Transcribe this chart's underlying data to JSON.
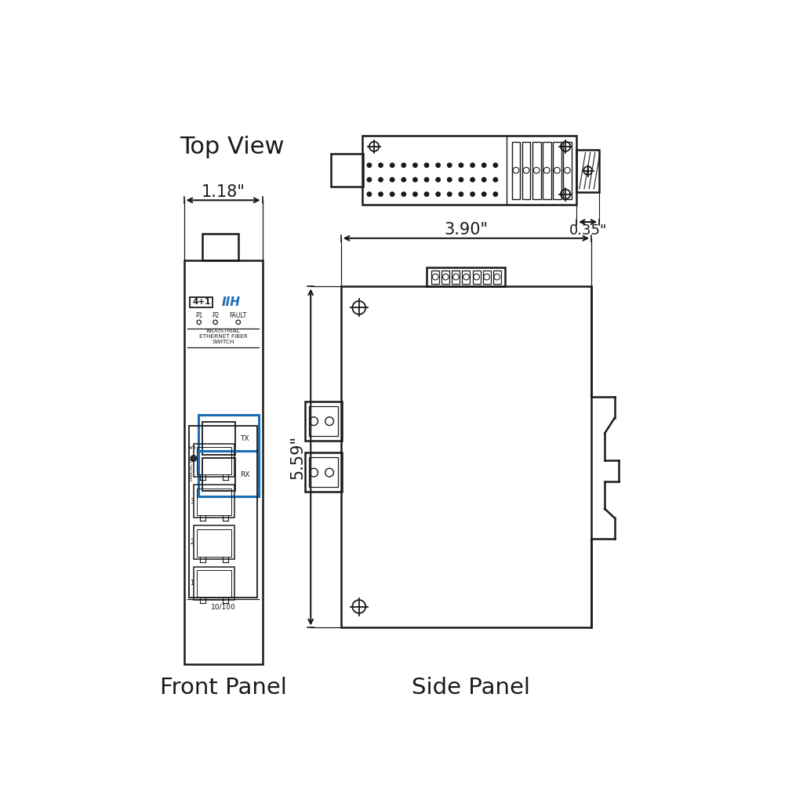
{
  "bg_color": "#ffffff",
  "line_color": "#1a1a1a",
  "blue_color": "#1a6eb5",
  "label_top_view": "Top View",
  "label_front_panel": "Front Panel",
  "label_side_panel": "Side Panel",
  "dim_118": "1.18\"",
  "dim_390": "3.90\"",
  "dim_559": "5.59\"",
  "dim_035": "0.35\""
}
